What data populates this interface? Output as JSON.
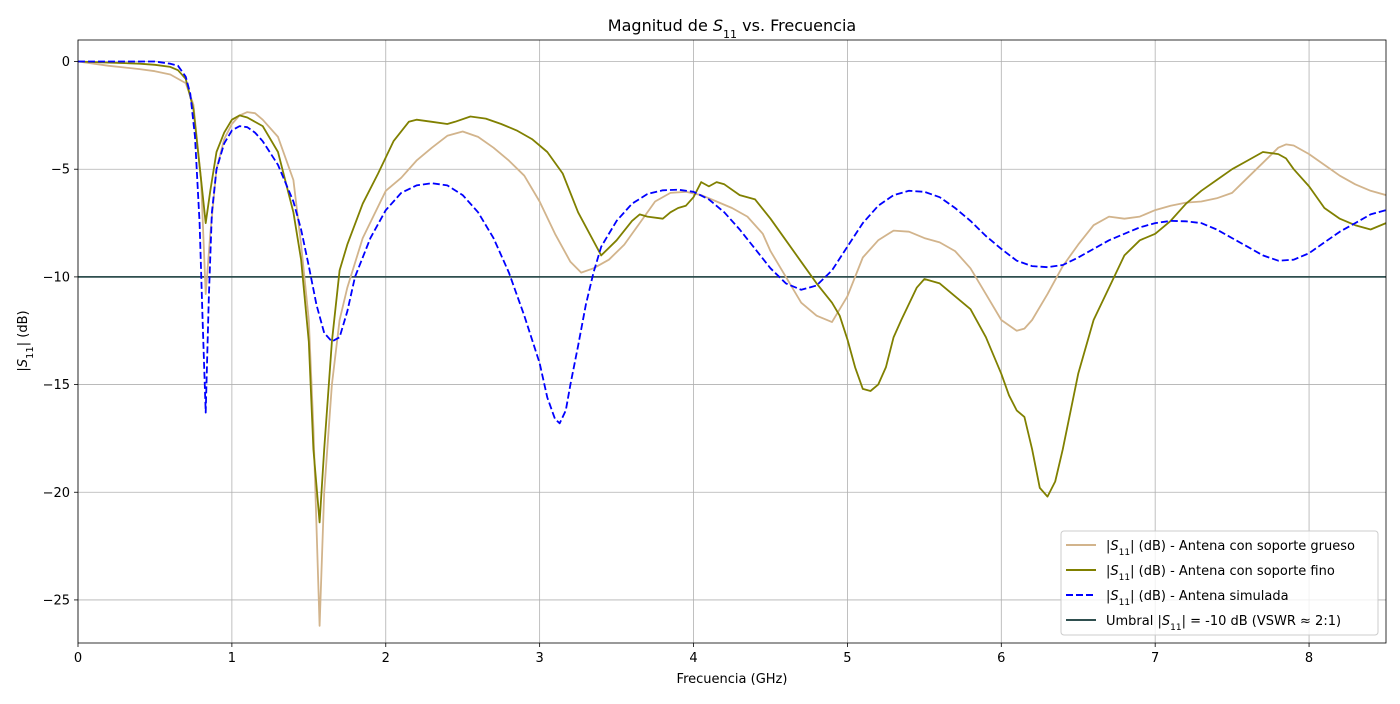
{
  "chart_data": {
    "type": "line",
    "title": {
      "prefix": "Magnitud de ",
      "symbol": "S",
      "subscript": "11",
      "suffix": " vs. Frecuencia"
    },
    "xlabel": "Frecuencia (GHz)",
    "ylabel": {
      "prefix": "|",
      "symbol": "S",
      "subscript": "11",
      "suffix": "| (dB)"
    },
    "xlim": [
      0,
      8.5
    ],
    "ylim": [
      -27,
      1
    ],
    "xticks": [
      0,
      1,
      2,
      3,
      4,
      5,
      6,
      7,
      8
    ],
    "xtick_labels": [
      "0",
      "1",
      "2",
      "3",
      "4",
      "5",
      "6",
      "7",
      "8"
    ],
    "yticks": [
      0,
      -5,
      -10,
      -15,
      -20,
      -25
    ],
    "ytick_labels": [
      "0",
      "−5",
      "−10",
      "−15",
      "−20",
      "−25"
    ],
    "grid": true,
    "legend_position": "lower-right",
    "series": [
      {
        "name": {
          "prefix": "|",
          "symbol": "S",
          "subscript": "11",
          "suffix": "| (dB) - Antena con soporte grueso"
        },
        "color": "#d2b48c",
        "style": "solid",
        "x": [
          0,
          0.2,
          0.4,
          0.5,
          0.6,
          0.7,
          0.75,
          0.8,
          0.83,
          0.86,
          0.9,
          0.95,
          1.0,
          1.05,
          1.1,
          1.15,
          1.2,
          1.3,
          1.4,
          1.45,
          1.5,
          1.53,
          1.57,
          1.6,
          1.65,
          1.7,
          1.75,
          1.85,
          2.0,
          2.1,
          2.2,
          2.3,
          2.4,
          2.5,
          2.6,
          2.7,
          2.8,
          2.9,
          3.0,
          3.1,
          3.2,
          3.27,
          3.35,
          3.45,
          3.55,
          3.65,
          3.75,
          3.85,
          3.95,
          4.05,
          4.15,
          4.25,
          4.35,
          4.45,
          4.5,
          4.6,
          4.7,
          4.8,
          4.9,
          5.0,
          5.1,
          5.2,
          5.3,
          5.4,
          5.5,
          5.6,
          5.7,
          5.8,
          5.9,
          6.0,
          6.1,
          6.15,
          6.2,
          6.3,
          6.4,
          6.5,
          6.6,
          6.7,
          6.8,
          6.9,
          7.0,
          7.1,
          7.2,
          7.3,
          7.4,
          7.5,
          7.6,
          7.7,
          7.8,
          7.85,
          7.9,
          8.0,
          8.1,
          8.2,
          8.3,
          8.4,
          8.5
        ],
        "values": [
          0,
          -0.2,
          -0.35,
          -0.45,
          -0.6,
          -1.0,
          -2.0,
          -5.5,
          -10.8,
          -8.0,
          -5.0,
          -3.6,
          -2.9,
          -2.5,
          -2.35,
          -2.4,
          -2.7,
          -3.5,
          -5.5,
          -8.5,
          -12.0,
          -17.0,
          -26.2,
          -20.0,
          -15.0,
          -12.0,
          -10.5,
          -8.2,
          -6.0,
          -5.4,
          -4.6,
          -4.0,
          -3.45,
          -3.25,
          -3.5,
          -4.0,
          -4.6,
          -5.3,
          -6.5,
          -8.0,
          -9.3,
          -9.8,
          -9.6,
          -9.2,
          -8.5,
          -7.5,
          -6.5,
          -6.1,
          -6.05,
          -6.2,
          -6.5,
          -6.8,
          -7.2,
          -8.0,
          -8.8,
          -10.0,
          -11.2,
          -11.8,
          -12.1,
          -10.9,
          -9.1,
          -8.3,
          -7.85,
          -7.9,
          -8.2,
          -8.4,
          -8.8,
          -9.6,
          -10.8,
          -12.0,
          -12.5,
          -12.4,
          -12.0,
          -10.8,
          -9.5,
          -8.5,
          -7.6,
          -7.2,
          -7.3,
          -7.2,
          -6.9,
          -6.7,
          -6.55,
          -6.5,
          -6.35,
          -6.1,
          -5.4,
          -4.7,
          -4.0,
          -3.85,
          -3.9,
          -4.3,
          -4.8,
          -5.3,
          -5.7,
          -6.0,
          -6.2
        ]
      },
      {
        "name": {
          "prefix": "|",
          "symbol": "S",
          "subscript": "11",
          "suffix": "| (dB) - Antena con soporte fino"
        },
        "color": "#808000",
        "style": "solid",
        "x": [
          0,
          0.2,
          0.4,
          0.5,
          0.6,
          0.65,
          0.7,
          0.75,
          0.8,
          0.83,
          0.86,
          0.9,
          0.95,
          1.0,
          1.05,
          1.1,
          1.2,
          1.3,
          1.4,
          1.45,
          1.5,
          1.53,
          1.57,
          1.6,
          1.65,
          1.7,
          1.75,
          1.85,
          1.95,
          2.05,
          2.15,
          2.2,
          2.3,
          2.4,
          2.45,
          2.55,
          2.65,
          2.75,
          2.85,
          2.95,
          3.05,
          3.15,
          3.25,
          3.4,
          3.5,
          3.6,
          3.65,
          3.7,
          3.8,
          3.85,
          3.9,
          3.95,
          4.0,
          4.05,
          4.1,
          4.15,
          4.2,
          4.3,
          4.4,
          4.5,
          4.6,
          4.7,
          4.8,
          4.9,
          4.95,
          5.0,
          5.05,
          5.1,
          5.15,
          5.2,
          5.25,
          5.3,
          5.35,
          5.45,
          5.5,
          5.6,
          5.7,
          5.8,
          5.9,
          6.0,
          6.05,
          6.1,
          6.15,
          6.2,
          6.25,
          6.3,
          6.35,
          6.4,
          6.5,
          6.6,
          6.7,
          6.8,
          6.9,
          7.0,
          7.1,
          7.2,
          7.3,
          7.4,
          7.5,
          7.6,
          7.7,
          7.8,
          7.85,
          7.9,
          8.0,
          8.1,
          8.2,
          8.3,
          8.4,
          8.5
        ],
        "values": [
          0,
          -0.05,
          -0.1,
          -0.15,
          -0.25,
          -0.4,
          -0.8,
          -2.2,
          -5.5,
          -7.5,
          -6.0,
          -4.2,
          -3.3,
          -2.7,
          -2.5,
          -2.6,
          -3.0,
          -4.2,
          -7.0,
          -9.2,
          -13.0,
          -18.0,
          -21.4,
          -18.0,
          -13.0,
          -9.7,
          -8.5,
          -6.6,
          -5.2,
          -3.7,
          -2.8,
          -2.7,
          -2.8,
          -2.9,
          -2.8,
          -2.55,
          -2.65,
          -2.9,
          -3.2,
          -3.6,
          -4.2,
          -5.2,
          -7.0,
          -9.0,
          -8.3,
          -7.4,
          -7.1,
          -7.2,
          -7.3,
          -7.0,
          -6.8,
          -6.7,
          -6.3,
          -5.6,
          -5.8,
          -5.6,
          -5.7,
          -6.2,
          -6.4,
          -7.3,
          -8.3,
          -9.3,
          -10.3,
          -11.2,
          -11.8,
          -12.9,
          -14.2,
          -15.2,
          -15.3,
          -15.0,
          -14.2,
          -12.8,
          -12.0,
          -10.5,
          -10.1,
          -10.3,
          -10.9,
          -11.5,
          -12.8,
          -14.5,
          -15.5,
          -16.2,
          -16.5,
          -18.0,
          -19.8,
          -20.2,
          -19.5,
          -18.0,
          -14.5,
          -12.0,
          -10.5,
          -9.0,
          -8.3,
          -8.0,
          -7.4,
          -6.6,
          -6.0,
          -5.5,
          -5.0,
          -4.6,
          -4.2,
          -4.3,
          -4.5,
          -5.0,
          -5.8,
          -6.8,
          -7.3,
          -7.6,
          -7.8,
          -7.5
        ]
      },
      {
        "name": {
          "prefix": "|",
          "symbol": "S",
          "subscript": "11",
          "suffix": "| (dB) - Antena simulada"
        },
        "color": "#0000ff",
        "style": "dashed",
        "x": [
          0,
          0.2,
          0.4,
          0.5,
          0.6,
          0.65,
          0.7,
          0.73,
          0.76,
          0.79,
          0.81,
          0.83,
          0.85,
          0.87,
          0.9,
          0.95,
          1.0,
          1.05,
          1.1,
          1.15,
          1.2,
          1.3,
          1.4,
          1.45,
          1.5,
          1.55,
          1.6,
          1.65,
          1.7,
          1.75,
          1.8,
          1.9,
          2.0,
          2.1,
          2.2,
          2.3,
          2.4,
          2.5,
          2.6,
          2.7,
          2.8,
          2.9,
          3.0,
          3.05,
          3.1,
          3.13,
          3.17,
          3.2,
          3.25,
          3.3,
          3.35,
          3.4,
          3.5,
          3.6,
          3.7,
          3.8,
          3.9,
          4.0,
          4.1,
          4.2,
          4.3,
          4.4,
          4.5,
          4.6,
          4.7,
          4.8,
          4.9,
          5.0,
          5.1,
          5.2,
          5.3,
          5.4,
          5.5,
          5.6,
          5.7,
          5.8,
          5.9,
          6.0,
          6.1,
          6.2,
          6.3,
          6.4,
          6.5,
          6.6,
          6.7,
          6.8,
          6.9,
          7.0,
          7.1,
          7.2,
          7.3,
          7.4,
          7.5,
          7.6,
          7.7,
          7.8,
          7.9,
          8.0,
          8.1,
          8.2,
          8.3,
          8.4,
          8.5
        ],
        "values": [
          0,
          0,
          0,
          0,
          -0.1,
          -0.2,
          -0.7,
          -1.5,
          -3.5,
          -7.5,
          -12.0,
          -16.3,
          -11.0,
          -7.0,
          -5.0,
          -3.8,
          -3.2,
          -3.0,
          -3.05,
          -3.3,
          -3.7,
          -4.8,
          -6.5,
          -7.8,
          -9.5,
          -11.3,
          -12.6,
          -13.0,
          -12.8,
          -11.6,
          -10.0,
          -8.2,
          -6.9,
          -6.1,
          -5.75,
          -5.65,
          -5.75,
          -6.2,
          -7.0,
          -8.2,
          -9.8,
          -11.8,
          -14.0,
          -15.6,
          -16.6,
          -16.8,
          -16.2,
          -15.0,
          -13.2,
          -11.3,
          -9.8,
          -8.6,
          -7.4,
          -6.6,
          -6.15,
          -5.98,
          -5.95,
          -6.05,
          -6.4,
          -7.0,
          -7.8,
          -8.7,
          -9.6,
          -10.3,
          -10.6,
          -10.4,
          -9.7,
          -8.6,
          -7.5,
          -6.7,
          -6.2,
          -6.0,
          -6.05,
          -6.3,
          -6.8,
          -7.4,
          -8.1,
          -8.7,
          -9.25,
          -9.5,
          -9.55,
          -9.45,
          -9.1,
          -8.7,
          -8.3,
          -8.0,
          -7.7,
          -7.5,
          -7.4,
          -7.42,
          -7.5,
          -7.8,
          -8.2,
          -8.6,
          -9.0,
          -9.25,
          -9.2,
          -8.9,
          -8.4,
          -7.9,
          -7.5,
          -7.1,
          -6.9
        ]
      },
      {
        "name": {
          "prefix": "Umbral |",
          "symbol": "S",
          "subscript": "11",
          "suffix": "| = -10 dB (VSWR ≈ 2:1)"
        },
        "color": "#2f4f4f",
        "style": "solid",
        "x": [
          0,
          8.5
        ],
        "values": [
          -10,
          -10
        ]
      }
    ]
  }
}
